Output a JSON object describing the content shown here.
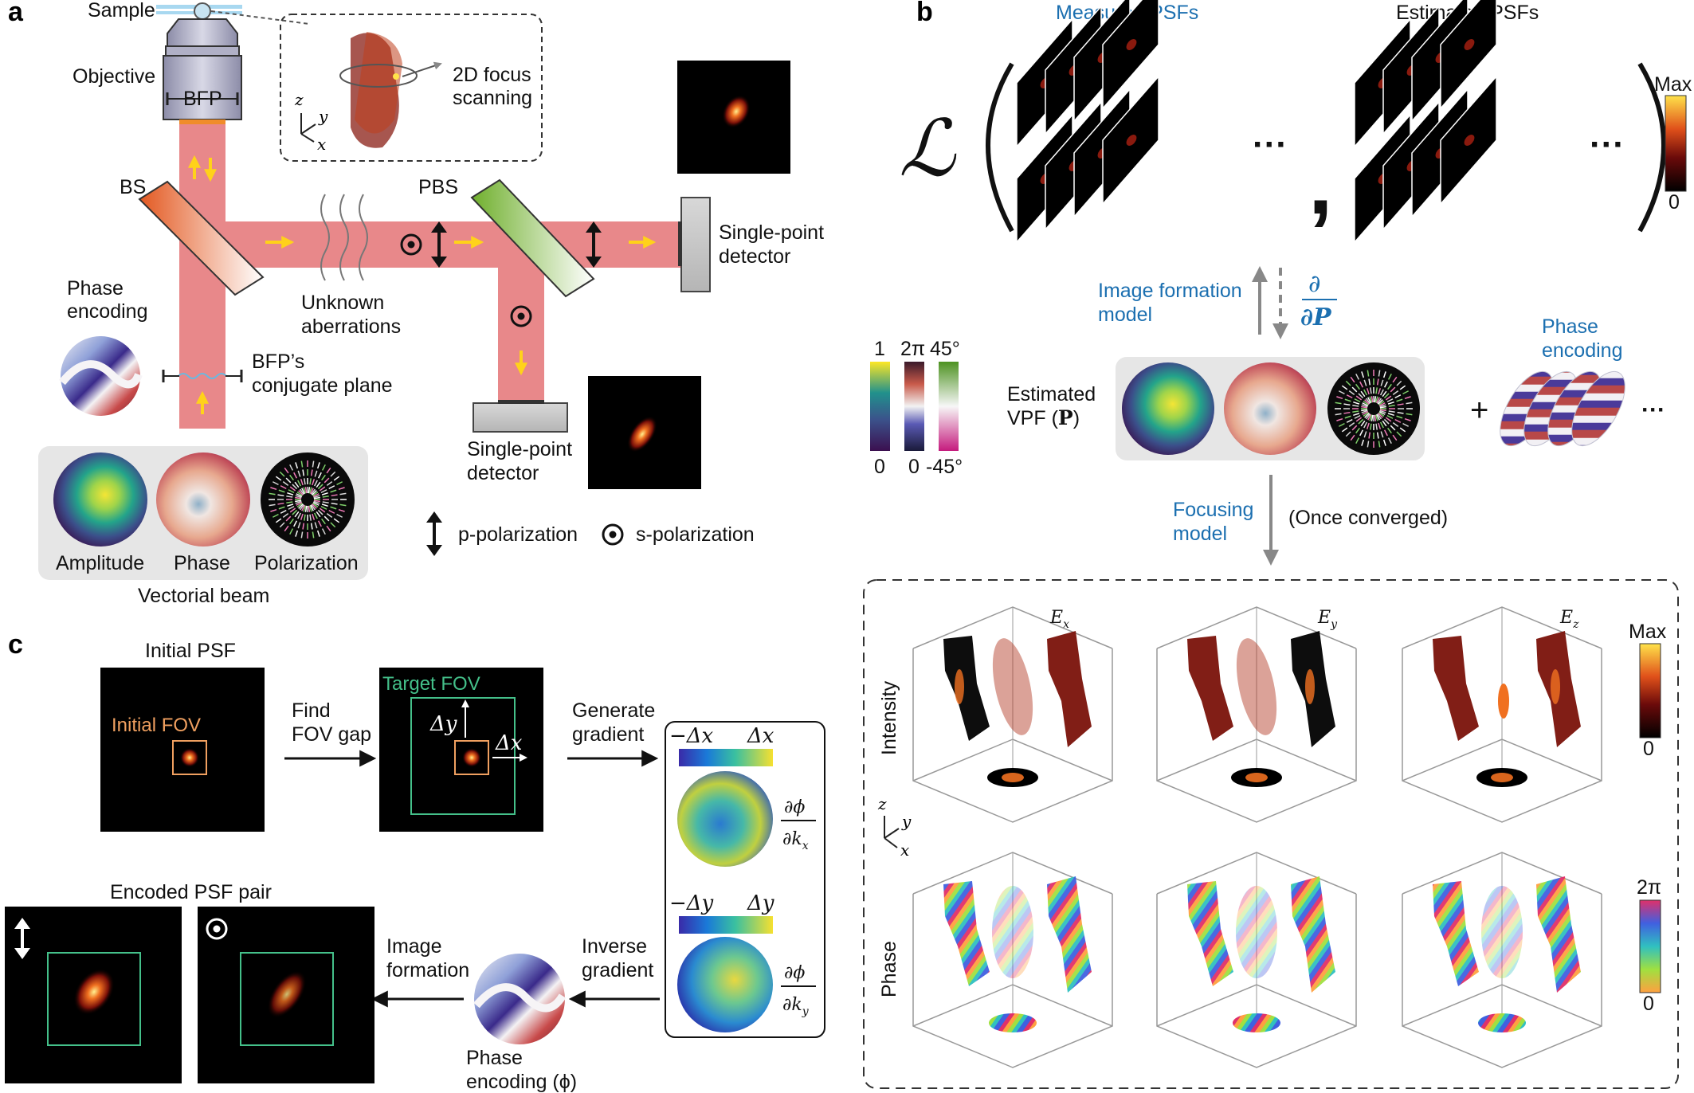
{
  "panel_a": {
    "label": "a",
    "sample": "Sample",
    "objective": "Objective",
    "bfp": "BFP",
    "bs": "BS",
    "pbs": "PBS",
    "focus_scan": [
      "2D focus",
      "scanning"
    ],
    "axes": {
      "z": "z",
      "y": "y",
      "x": "x"
    },
    "unknown_aberrations": [
      "Unknown",
      "aberrations"
    ],
    "detector_right": [
      "Single-point",
      "detector"
    ],
    "detector_bottom": [
      "Single-point",
      "detector"
    ],
    "phase_encoding": [
      "Phase",
      "encoding"
    ],
    "conjugate_plane": [
      "BFP’s",
      "conjugate plane"
    ],
    "beam_items": [
      "Amplitude",
      "Phase",
      "Polarization"
    ],
    "beam_caption": "Vectorial beam",
    "legend_p": "p-polarization",
    "legend_s": "s-polarization"
  },
  "panel_b": {
    "label": "b",
    "loss": "ℒ",
    "measured": "Measured PSFs",
    "estimated": "Estimated PSFs",
    "ellipsis": "···",
    "comma": ",",
    "image_formation": [
      "Image formation",
      "model"
    ],
    "derivative_top": "∂",
    "derivative_bottom": "∂P",
    "colorbar_top": "Max",
    "colorbar_bottom": "0",
    "vpf_scale_top": [
      "1",
      "2π",
      "45°"
    ],
    "vpf_scale_bottom": [
      "0",
      "0",
      "-45°"
    ],
    "vpf_label": [
      "Estimated",
      "VPF (",
      "P",
      ")"
    ],
    "plus": "+",
    "phase_encoding": [
      "Phase",
      "encoding"
    ],
    "focusing": [
      "Focusing",
      "model"
    ],
    "once_converged": "(Once converged)",
    "field_components": [
      "E",
      "x",
      "E",
      "y",
      "E",
      "z"
    ],
    "row_intensity": "Intensity",
    "row_phase": "Phase",
    "int_bar_top": "Max",
    "int_bar_bottom": "0",
    "phase_bar_top": "2π",
    "phase_bar_bottom": "0",
    "axes": {
      "z": "z",
      "y": "y",
      "x": "x"
    }
  },
  "panel_c": {
    "label": "c",
    "initial_psf": "Initial PSF",
    "initial_fov": "Initial FOV",
    "target_fov": "Target FOV",
    "find_gap": [
      "Find",
      "FOV gap"
    ],
    "generate_gradient": [
      "Generate",
      "gradient"
    ],
    "dy": "Δy",
    "dx": "Δx",
    "grad_x_ends": [
      "−Δx",
      "Δx"
    ],
    "grad_y_ends": [
      "−Δy",
      "Δy"
    ],
    "dphi": "∂ϕ",
    "dkx": "∂k",
    "dkx_sub": "x",
    "dky": "∂k",
    "dky_sub": "y",
    "inverse_gradient": [
      "Inverse",
      "gradient"
    ],
    "image_formation": [
      "Image",
      "formation"
    ],
    "phase_encoding": [
      "Phase",
      "encoding (ϕ)"
    ],
    "encoded_pair": "Encoded PSF pair"
  },
  "colors": {
    "beam": "#e8888a",
    "label_blue": "#1b6fb0",
    "fov_orange": "#f0a060",
    "fov_green": "#44c08a",
    "arrow_yellow": "#ffd21a"
  }
}
